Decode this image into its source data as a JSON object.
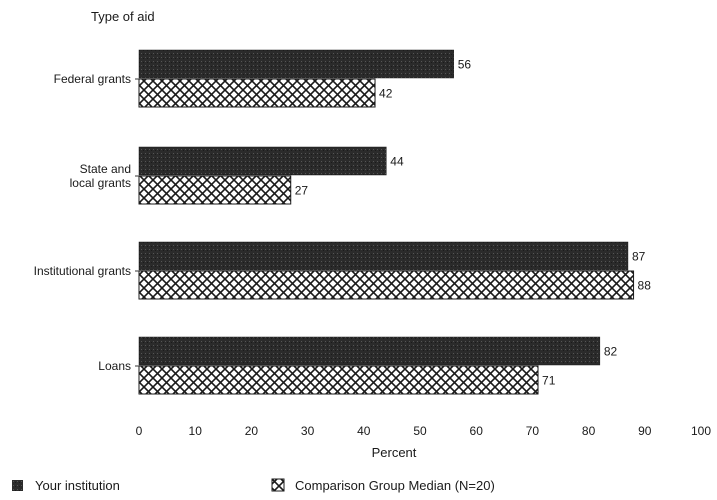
{
  "chart_data": {
    "type": "bar",
    "orientation": "horizontal",
    "title": "Type of aid",
    "xlabel": "Percent",
    "ylabel": "",
    "xlim": [
      0,
      100
    ],
    "xticks": [
      0,
      10,
      20,
      30,
      40,
      50,
      60,
      70,
      80,
      90,
      100
    ],
    "categories": [
      [
        "Federal grants"
      ],
      [
        "State and",
        "local grants"
      ],
      [
        "Institutional grants"
      ],
      [
        "Loans"
      ]
    ],
    "series": [
      {
        "name": "Your institution",
        "values": [
          56,
          44,
          87,
          82
        ],
        "pattern": "dark-stipple"
      },
      {
        "name": "Comparison Group Median (N=20)",
        "values": [
          42,
          27,
          88,
          71
        ],
        "pattern": "crosshatch"
      }
    ],
    "legend_position": "bottom",
    "grid": false
  },
  "colors": {
    "bar_dark": "#2b2b2b",
    "hatch_line": "#1a1a1a",
    "hatch_bg": "#ffffff"
  }
}
